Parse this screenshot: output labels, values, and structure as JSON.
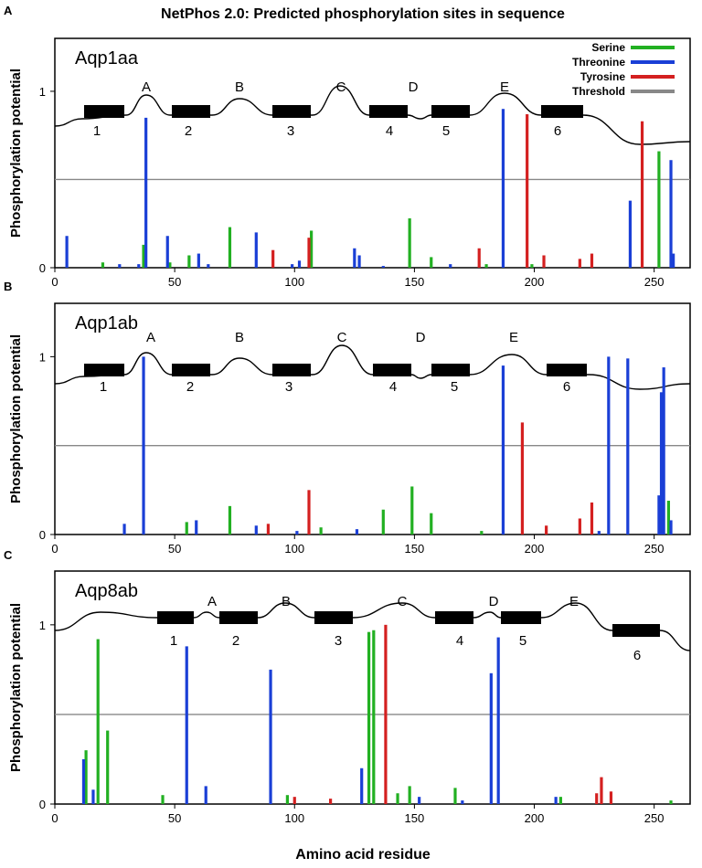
{
  "title": "NetPhos 2.0: Predicted phosphorylation sites in sequence",
  "xlabel": "Amino acid residue",
  "ylabel": "Phosphorylation potential",
  "legend": [
    {
      "label": "Serine",
      "color": "#22b022"
    },
    {
      "label": "Threonine",
      "color": "#1a3fd6"
    },
    {
      "label": "Tyrosine",
      "color": "#d42020"
    },
    {
      "label": "Threshold",
      "color": "#888888"
    }
  ],
  "chart_data": [
    {
      "type": "bar",
      "panel": "A",
      "name": "Aqp1aa",
      "xlim": [
        0,
        265
      ],
      "ylim": [
        0,
        1.3
      ],
      "xticks": [
        "0",
        "50",
        "100",
        "150",
        "200",
        "250"
      ],
      "yticks": [
        "0",
        "1"
      ],
      "threshold": 0.5,
      "segments_upper": [
        "A",
        "B",
        "C",
        "D",
        "E"
      ],
      "segments_numbers": [
        "1",
        "2",
        "3",
        "4",
        "5",
        "6"
      ],
      "series": [
        {
          "name": "Serine",
          "x": [
            20,
            37,
            48,
            56,
            73,
            107,
            148,
            157,
            180,
            199,
            252
          ],
          "values": [
            0.03,
            0.13,
            0.03,
            0.07,
            0.23,
            0.21,
            0.28,
            0.06,
            0.02,
            0.02,
            0.66
          ]
        },
        {
          "name": "Threonine",
          "x": [
            5,
            27,
            35,
            38,
            47,
            60,
            64,
            84,
            99,
            102,
            125,
            127,
            137,
            165,
            187,
            240,
            257,
            258
          ],
          "values": [
            0.18,
            0.02,
            0.02,
            0.85,
            0.18,
            0.08,
            0.02,
            0.2,
            0.02,
            0.04,
            0.11,
            0.07,
            0.01,
            0.02,
            0.9,
            0.38,
            0.61,
            0.08
          ]
        },
        {
          "name": "Tyrosine",
          "x": [
            91,
            106,
            177,
            197,
            204,
            219,
            224,
            245
          ],
          "values": [
            0.1,
            0.17,
            0.11,
            0.87,
            0.07,
            0.05,
            0.08,
            0.83
          ]
        }
      ]
    },
    {
      "type": "bar",
      "panel": "B",
      "name": "Aqp1ab",
      "xlim": [
        0,
        265
      ],
      "ylim": [
        0,
        1.3
      ],
      "xticks": [
        "0",
        "50",
        "100",
        "150",
        "200",
        "250"
      ],
      "yticks": [
        "0",
        "1"
      ],
      "threshold": 0.5,
      "segments_upper": [
        "A",
        "B",
        "C",
        "D",
        "E"
      ],
      "segments_numbers": [
        "1",
        "2",
        "3",
        "4",
        "5",
        "6"
      ],
      "series": [
        {
          "name": "Serine",
          "x": [
            55,
            73,
            111,
            137,
            149,
            157,
            178,
            256
          ],
          "values": [
            0.07,
            0.16,
            0.04,
            0.14,
            0.27,
            0.12,
            0.02,
            0.19
          ]
        },
        {
          "name": "Threonine",
          "x": [
            29,
            37,
            59,
            84,
            101,
            126,
            187,
            227,
            231,
            239,
            252,
            253,
            254,
            257
          ],
          "values": [
            0.06,
            1.0,
            0.08,
            0.05,
            0.02,
            0.03,
            0.95,
            0.02,
            1.0,
            0.99,
            0.22,
            0.8,
            0.94,
            0.08
          ]
        },
        {
          "name": "Tyrosine",
          "x": [
            89,
            106,
            195,
            205,
            219,
            224
          ],
          "values": [
            0.06,
            0.25,
            0.63,
            0.05,
            0.09,
            0.18
          ]
        }
      ]
    },
    {
      "type": "bar",
      "panel": "C",
      "name": "Aqp8ab",
      "xlim": [
        0,
        265
      ],
      "ylim": [
        0,
        1.3
      ],
      "xticks": [
        "0",
        "50",
        "100",
        "150",
        "200",
        "250"
      ],
      "yticks": [
        "0",
        "1"
      ],
      "threshold": 0.5,
      "segments_upper": [
        "A",
        "B",
        "C",
        "D",
        "E"
      ],
      "segments_numbers": [
        "1",
        "2",
        "3",
        "4",
        "5",
        "6"
      ],
      "series": [
        {
          "name": "Serine",
          "x": [
            13,
            18,
            22,
            45,
            97,
            131,
            133,
            143,
            148,
            167,
            211,
            257
          ],
          "values": [
            0.3,
            0.92,
            0.41,
            0.05,
            0.05,
            0.96,
            0.97,
            0.06,
            0.1,
            0.09,
            0.04,
            0.02
          ]
        },
        {
          "name": "Threonine",
          "x": [
            12,
            16,
            55,
            63,
            90,
            128,
            152,
            170,
            182,
            185,
            209
          ],
          "values": [
            0.25,
            0.08,
            0.88,
            0.1,
            0.75,
            0.2,
            0.04,
            0.02,
            0.73,
            0.93,
            0.04
          ]
        },
        {
          "name": "Tyrosine",
          "x": [
            100,
            115,
            138,
            226,
            228,
            232
          ],
          "values": [
            0.04,
            0.03,
            1.0,
            0.06,
            0.15,
            0.07
          ]
        }
      ]
    }
  ]
}
